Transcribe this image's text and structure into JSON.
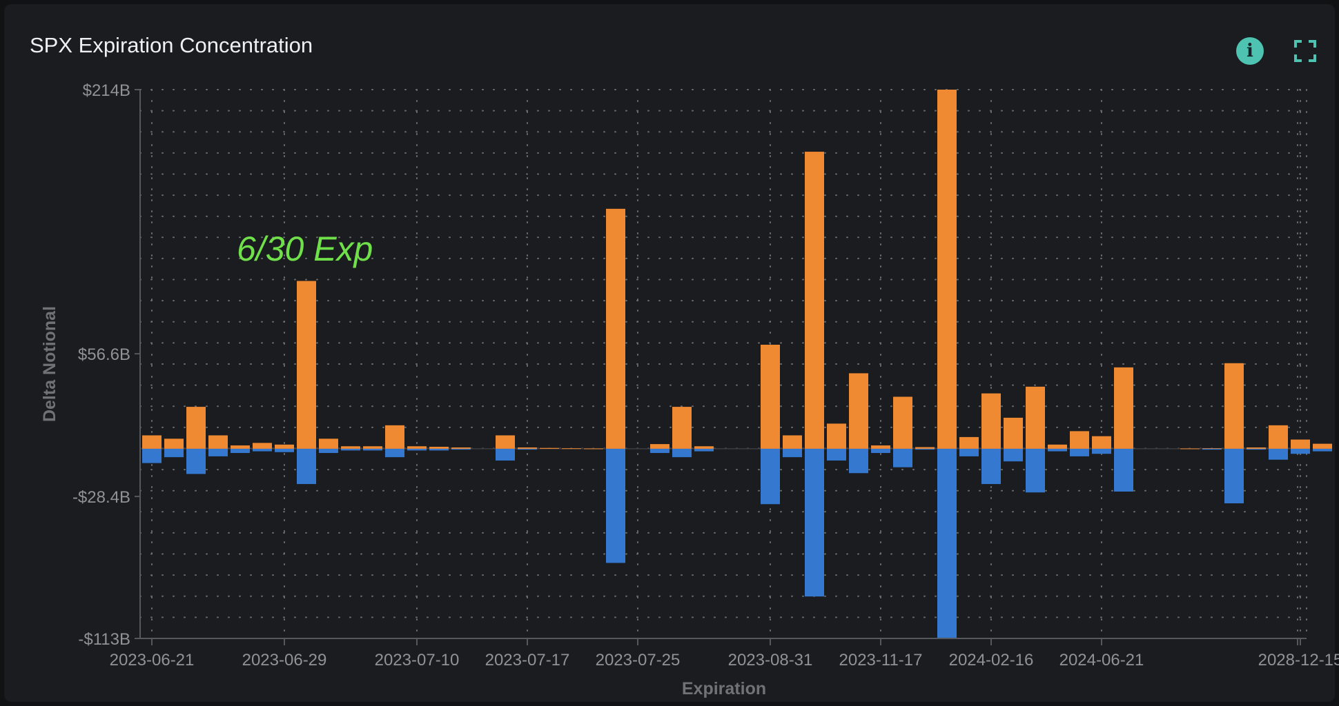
{
  "header": {
    "title": "SPX Expiration Concentration",
    "info_icon": "info-icon",
    "expand_icon": "fullscreen-icon"
  },
  "colors": {
    "positive": "#f08a32",
    "negative": "#3478d0",
    "annotation": "#6fe04a",
    "axis_text": "#8f9296",
    "grid": "#6b6e73",
    "info_button": "#4fc3b1"
  },
  "chart_data": {
    "type": "bar",
    "stacked": "diverging",
    "xlabel": "Expiration",
    "ylabel": "Delta Notional",
    "ylim": [
      -113,
      214
    ],
    "y_unit": "$B",
    "yticks": [
      214,
      56.6,
      -28.4,
      -113
    ],
    "ytick_labels": [
      "$214B",
      "$56.6B",
      "-$28.4B",
      "-$113B"
    ],
    "xtick_labels": [
      "2023-06-21",
      "2023-06-29",
      "2023-07-10",
      "2023-07-17",
      "2023-07-25",
      "2023-08-31",
      "2023-11-17",
      "2024-02-16",
      "2024-06-21",
      "2028-12-15"
    ],
    "annotation": "6/30 Exp",
    "grid": true,
    "legend": "none",
    "series": [
      {
        "color": "orange",
        "values": [
          8,
          6,
          25,
          8,
          2,
          3.5,
          2.5,
          100,
          6,
          1.5,
          1.5,
          14,
          1.5,
          1.2,
          0.8,
          0,
          8,
          0.8,
          0.5,
          0.3,
          0.2,
          143,
          0,
          2.8,
          25,
          1.5,
          0,
          0,
          62,
          8,
          177,
          15,
          45,
          2,
          31,
          1,
          214,
          7,
          33,
          18.5,
          37,
          2.5,
          10.5,
          7.5,
          48.5,
          0,
          0,
          0.2,
          0.3,
          51,
          0.8,
          14,
          5.5,
          3
        ]
      },
      {
        "color": "blue",
        "values": [
          -8.5,
          -5,
          -15,
          -4.5,
          -2.5,
          -1.5,
          -2,
          -21,
          -2.5,
          -1,
          -1,
          -5,
          -1,
          -1,
          -0.5,
          0,
          -7,
          -0.5,
          0,
          0,
          0,
          -68,
          0,
          -2.5,
          -5,
          -1.5,
          0,
          0,
          -33,
          -5,
          -88,
          -7,
          -14.5,
          -2.5,
          -11,
          -0.5,
          -113,
          -4.5,
          -21,
          -7.5,
          -26,
          -1.5,
          -4.5,
          -3,
          -25.5,
          0,
          0,
          0,
          -0.5,
          -32.5,
          -0.5,
          -6.5,
          -3,
          -1.5
        ]
      }
    ]
  }
}
